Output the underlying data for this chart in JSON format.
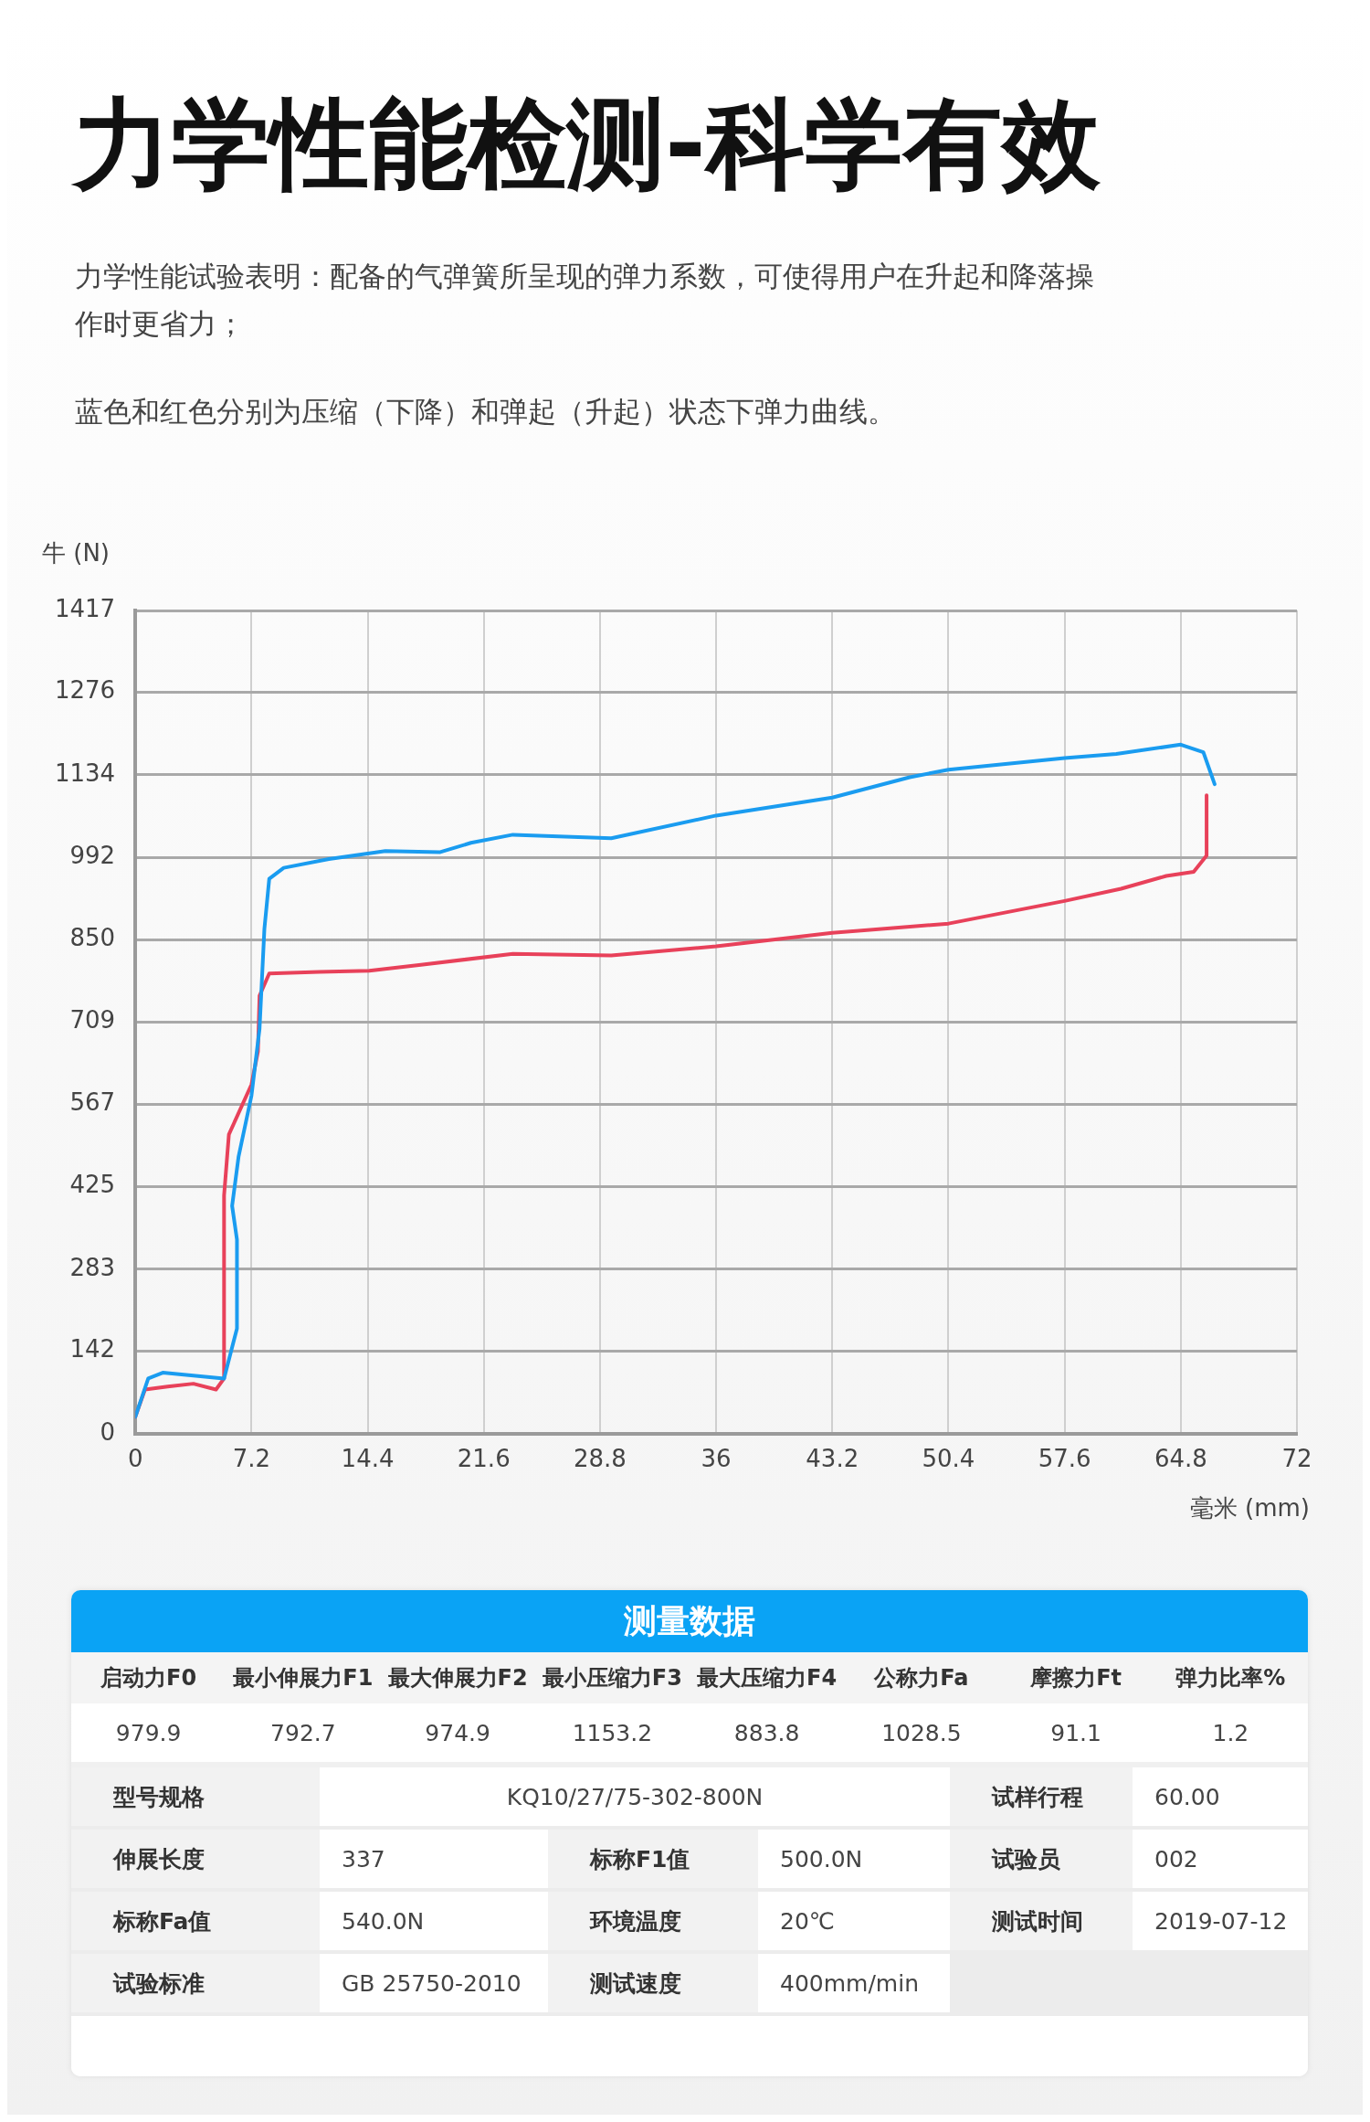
{
  "chart_data": [
    {
      "type": "line",
      "title": "力学性能检测-科学有效",
      "subtitle": "力学性能试验表明：配备的气弹簧所呈现的弹力系数，可使得用户在升起和降落操作时更省力；",
      "annotations": [
        "蓝色和红色分别为压缩（下降）和弹起（升起）状态下弹力曲线。"
      ],
      "xlabel": "毫米 (mm)",
      "ylabel": "牛 (N)",
      "xlim": [
        0,
        72
      ],
      "xticks": [
        0,
        7.2,
        14.4,
        21.6,
        28.8,
        36,
        43.2,
        50.4,
        57.6,
        64.8,
        72
      ],
      "ylim": [
        0,
        1417
      ],
      "yticks": [
        0,
        142,
        283,
        425,
        567,
        709,
        850,
        992,
        1134,
        1276,
        1417
      ],
      "grid": true,
      "legend": false,
      "marker": "none",
      "line_style": "solid",
      "series": [
        {
          "color": "#1a9cf0",
          "x": [
            0,
            0.8,
            1.7,
            3.6,
            5.5,
            6.3,
            6.3,
            6.0,
            6.4,
            7.2,
            7.7,
            8.0,
            8.3,
            9.2,
            12.0,
            15.5,
            18.9,
            20.8,
            23.4,
            29.5,
            36,
            43.2,
            48.0,
            50.4,
            57.6,
            60.8,
            64.8,
            66.2,
            66.9
          ],
          "values": [
            29,
            95,
            105,
            100,
            95,
            181,
            334,
            392,
            477,
            582,
            697,
            869,
            955,
            974,
            989,
            1003,
            1001,
            1017,
            1031,
            1025,
            1064,
            1095,
            1130,
            1143,
            1163,
            1170,
            1186,
            1173,
            1118
          ]
        },
        {
          "color": "#e8415a",
          "x": [
            0,
            0.6,
            2.0,
            3.6,
            5.0,
            5.5,
            5.5,
            5.8,
            7.2,
            7.6,
            7.7,
            8.3,
            11.4,
            14.5,
            17.7,
            23.4,
            29.5,
            36,
            43.2,
            50.4,
            57.6,
            61.1,
            63.9,
            65.6,
            66.4,
            66.4
          ],
          "values": [
            29,
            76,
            81,
            86,
            76,
            95,
            410,
            515,
            601,
            658,
            754,
            792,
            795,
            797,
            807,
            826,
            823,
            839,
            862,
            878,
            917,
            938,
            960,
            967,
            995,
            1099
          ]
        }
      ]
    },
    {
      "type": "other",
      "title": "测量数据",
      "annotations": [
        "启动力F0",
        "最小伸展力F1",
        "最大伸展力F2",
        "最小压缩力F3",
        "最大压缩力F4",
        "公称力Fa",
        "摩擦力Ft",
        "弹力比率%",
        "979.9",
        "792.7",
        "974.9",
        "1153.2",
        "883.8",
        "1028.5",
        "91.1",
        "1.2",
        "型号规格",
        "KQ10/27/75-302-800N",
        "试样行程",
        "60.00",
        "伸展长度",
        "337",
        "标称F1值",
        "500.0N",
        "试验员",
        "002",
        "标称Fa值",
        "540.0N",
        "环境温度",
        "20℃",
        "测试时间",
        "2019-07-12",
        "试验标准",
        "GB 25750-2010",
        "测试速度",
        "400mm/min"
      ]
    }
  ]
}
